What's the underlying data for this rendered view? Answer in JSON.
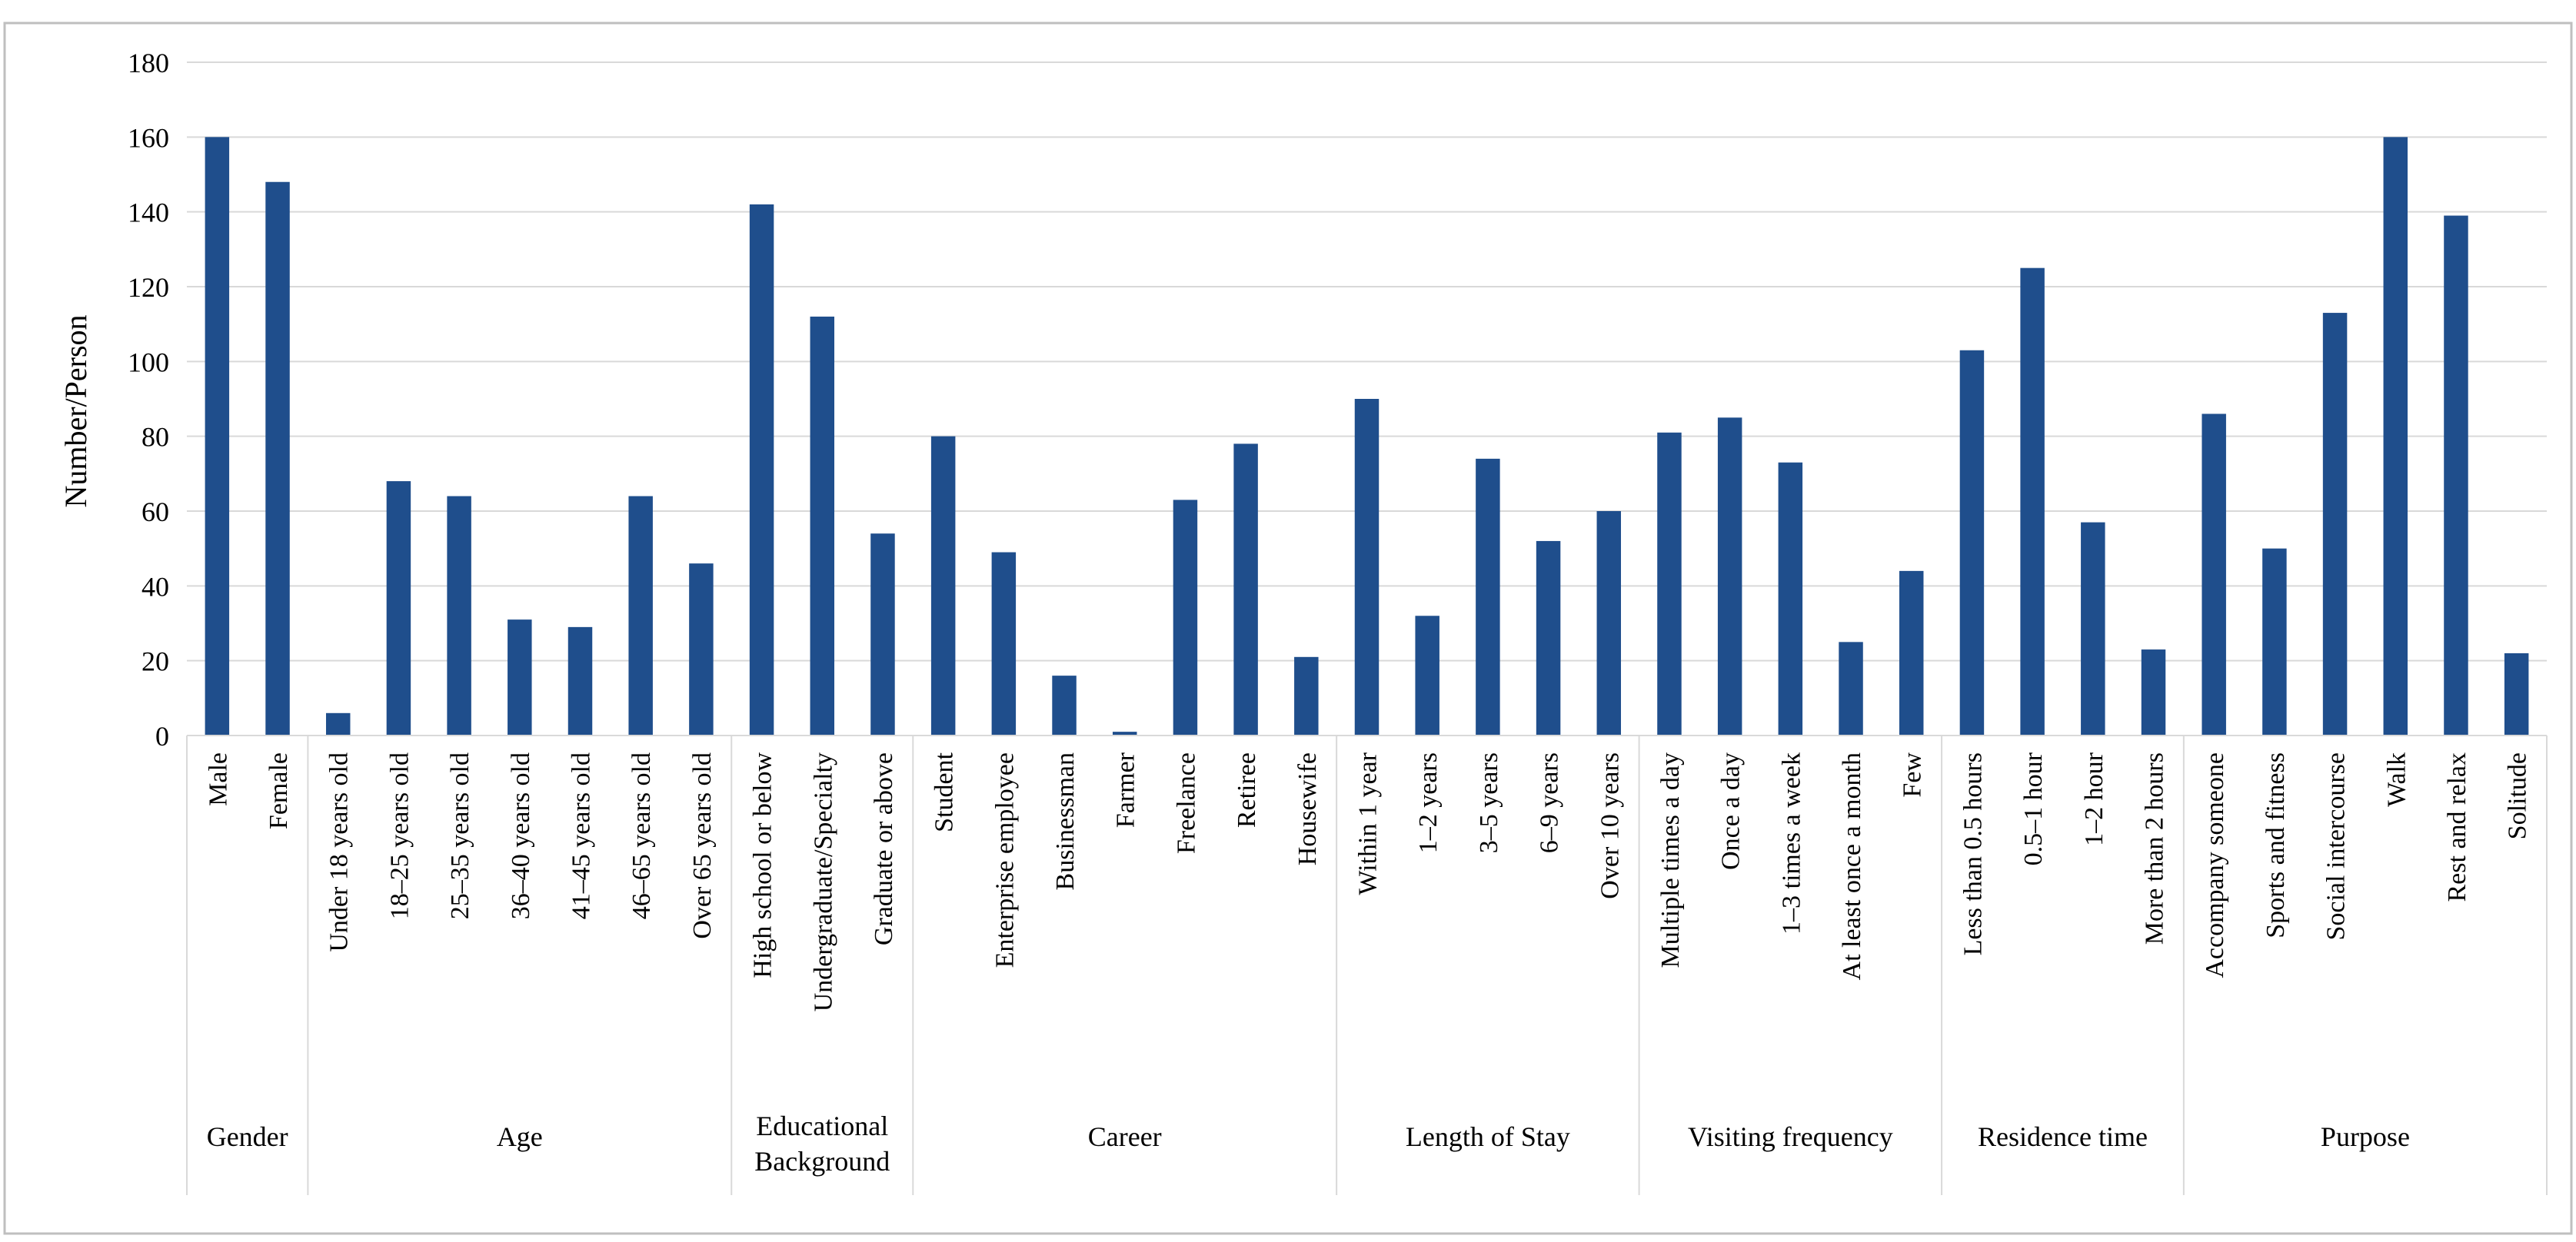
{
  "chart_data": {
    "type": "bar",
    "title": "",
    "ylabel": "Number/Person",
    "xlabel": "",
    "ylim": [
      0,
      180
    ],
    "yticks": [
      0,
      20,
      40,
      60,
      80,
      100,
      120,
      140,
      160,
      180
    ],
    "grid": true,
    "bar_color": "#1F4E8C",
    "grid_color": "#D9D9D9",
    "groups": [
      {
        "name": "Gender",
        "categories": [
          "Male",
          "Female"
        ],
        "values": [
          160,
          148
        ]
      },
      {
        "name": "Age",
        "categories": [
          "Under 18 years old",
          "18–25 years old",
          "25–35 years old",
          "36–40 years old",
          "41–45 years old",
          "46–65 years old",
          "Over 65 years old"
        ],
        "values": [
          6,
          68,
          64,
          31,
          29,
          64,
          46
        ]
      },
      {
        "name": "Educational Background",
        "categories": [
          "High school or below",
          "Undergraduate/Specialty",
          "Graduate or above"
        ],
        "values": [
          142,
          112,
          54
        ]
      },
      {
        "name": "Career",
        "categories": [
          "Student",
          "Enterprise employee",
          "Businessman",
          "Farmer",
          "Freelance",
          "Retiree",
          "Housewife"
        ],
        "values": [
          80,
          49,
          16,
          1,
          63,
          78,
          21
        ]
      },
      {
        "name": "Length of Stay",
        "categories": [
          "Within 1 year",
          "1–2 years",
          "3–5 years",
          "6–9 years",
          "Over 10 years"
        ],
        "values": [
          90,
          32,
          74,
          52,
          60
        ]
      },
      {
        "name": "Visiting frequency",
        "categories": [
          "Multiple times a day",
          "Once a day",
          "1–3 times a week",
          "At least once a month",
          "Few"
        ],
        "values": [
          81,
          85,
          73,
          25,
          44
        ]
      },
      {
        "name": "Residence time",
        "categories": [
          "Less than 0.5 hours",
          "0.5–1 hour",
          "1–2 hour",
          "More than 2 hours"
        ],
        "values": [
          103,
          125,
          57,
          23
        ]
      },
      {
        "name": "Purpose",
        "categories": [
          "Accompany someone",
          "Sports and fitness",
          "Social intercourse",
          "Walk",
          "Rest and relax",
          "Solitude"
        ],
        "values": [
          86,
          50,
          113,
          160,
          139,
          22
        ]
      }
    ]
  }
}
